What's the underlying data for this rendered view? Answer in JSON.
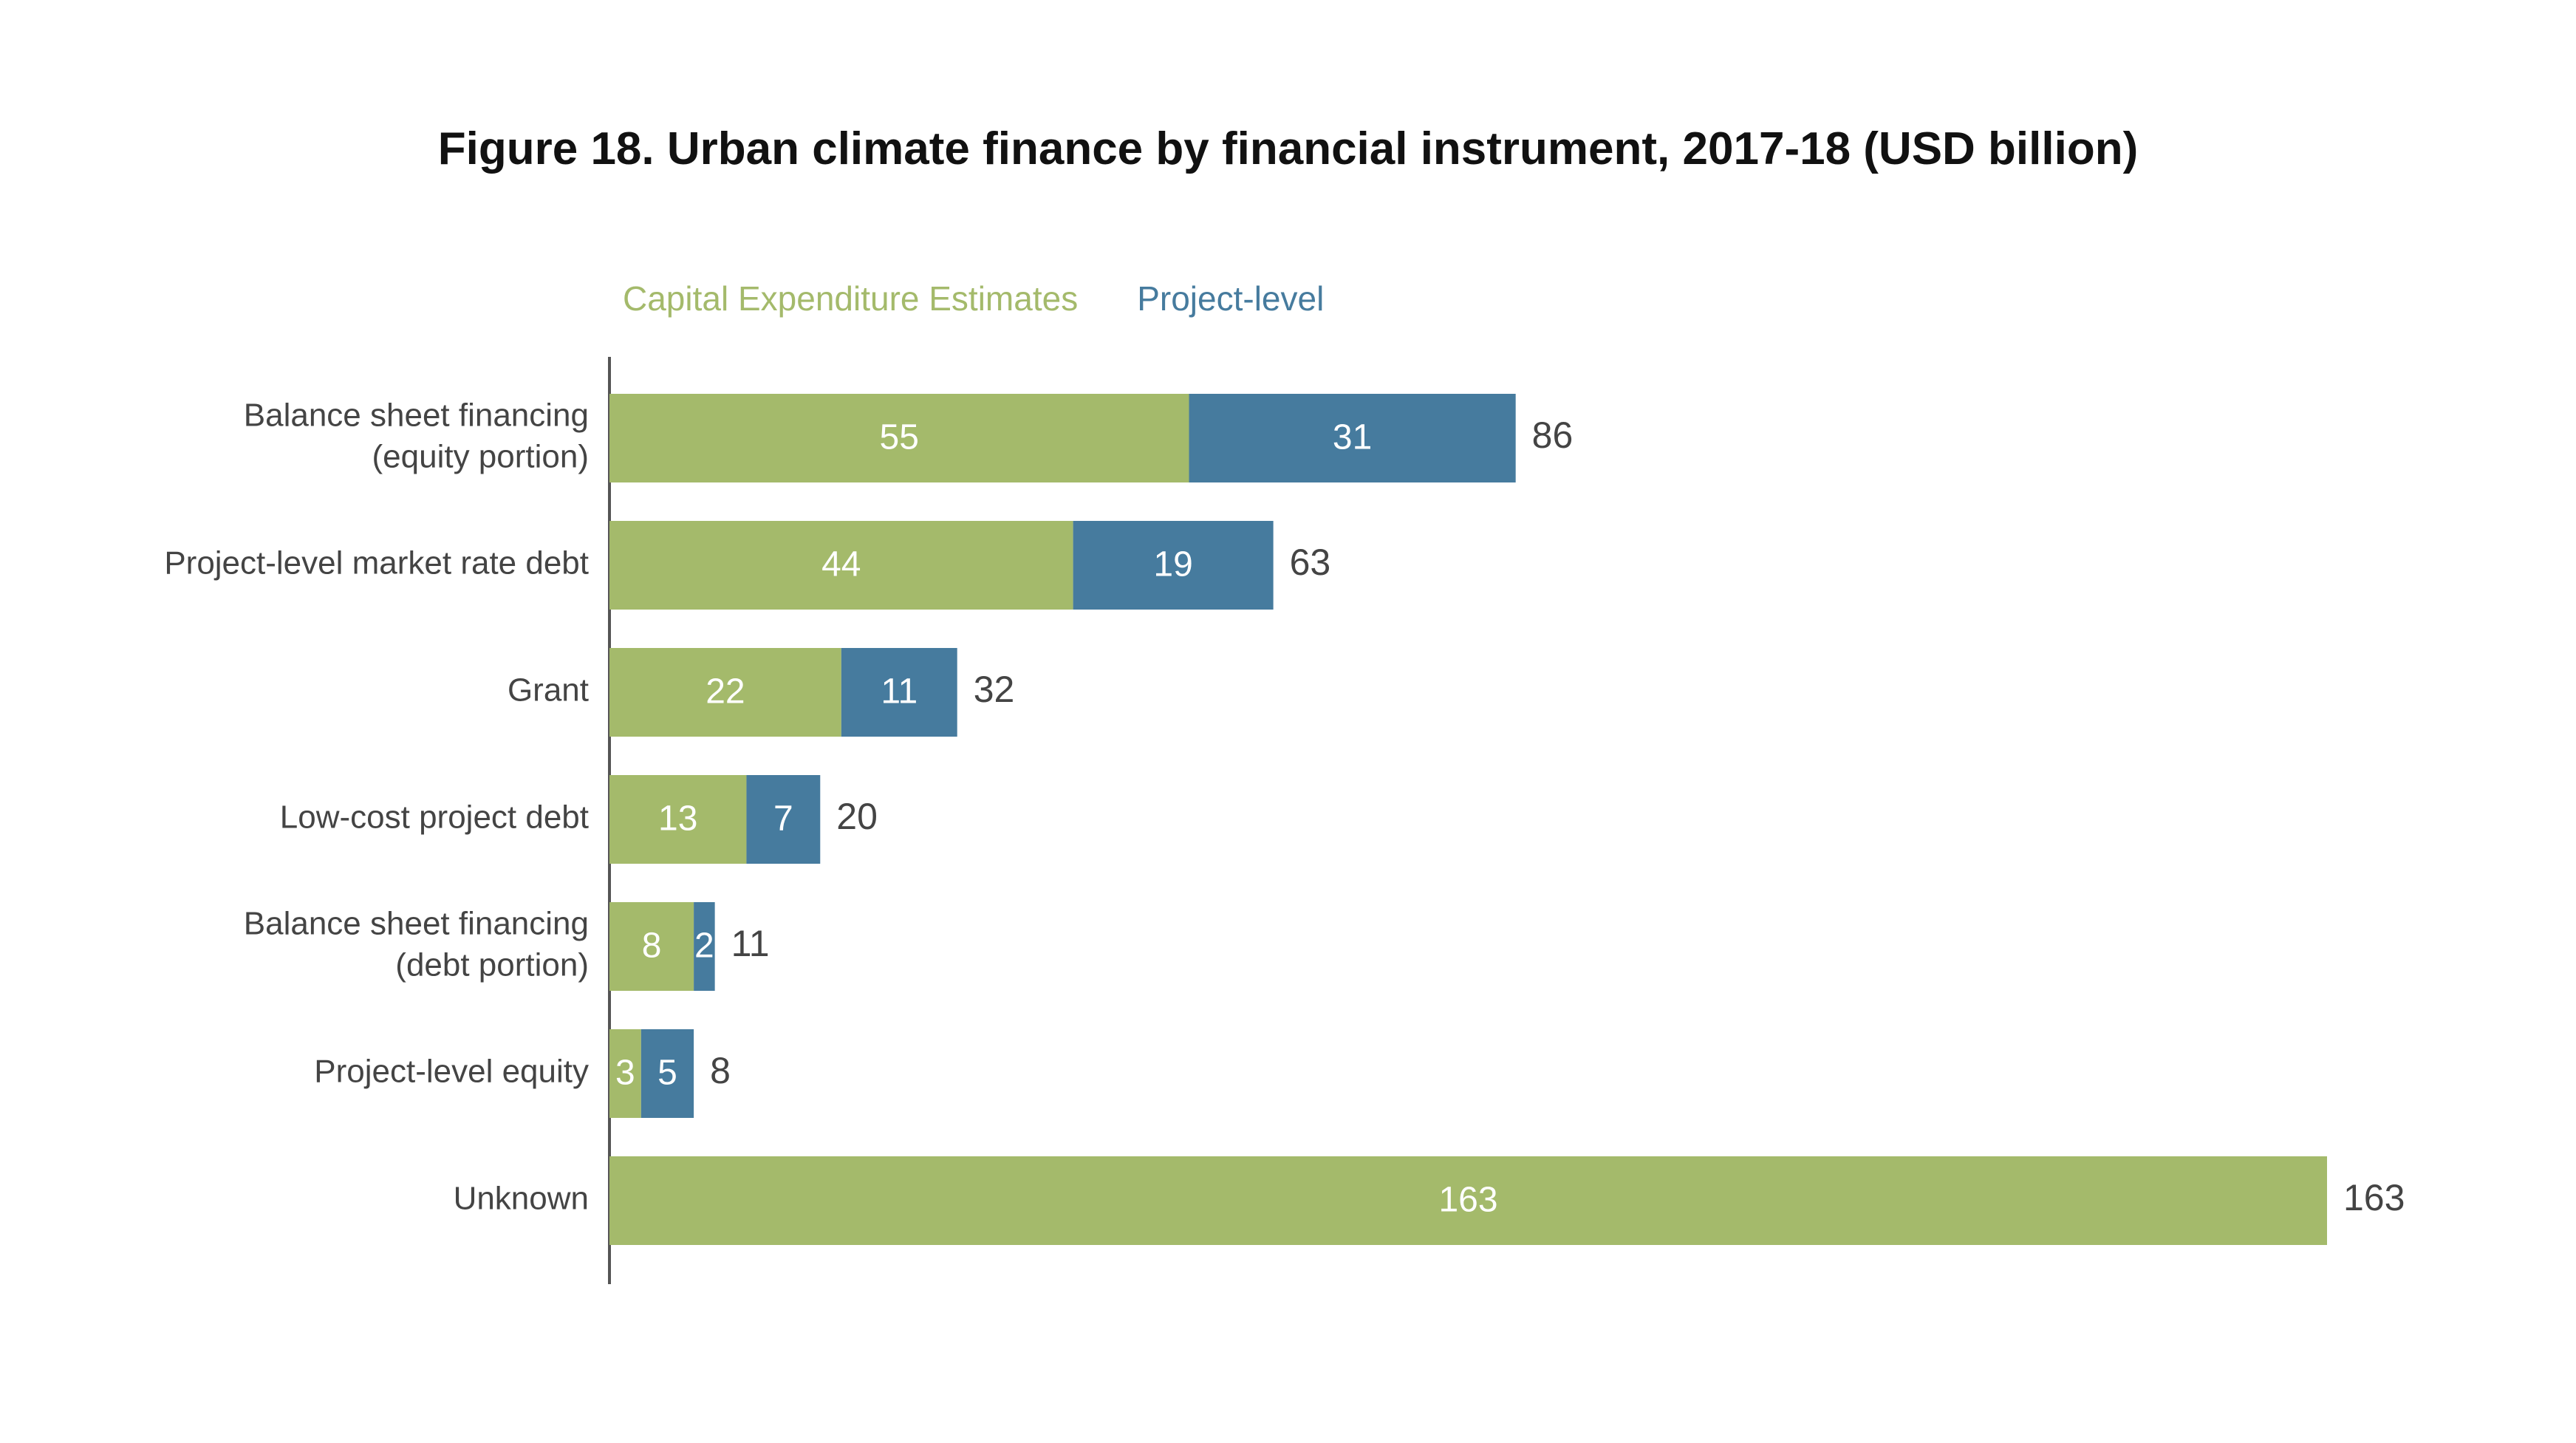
{
  "chart_data": {
    "type": "bar",
    "orientation": "horizontal",
    "stacked": true,
    "title": "Figure 18. Urban climate finance by financial instrument, 2017-18 (USD billion)",
    "categories": [
      "Balance sheet financing (equity portion)",
      "Project-level market rate debt",
      "Grant",
      "Low-cost project debt",
      "Balance sheet financing (debt portion)",
      "Project-level equity",
      "Unknown"
    ],
    "category_lines": [
      [
        "Balance sheet financing",
        "(equity portion)"
      ],
      [
        "Project-level market rate debt"
      ],
      [
        "Grant"
      ],
      [
        "Low-cost project debt"
      ],
      [
        "Balance sheet financing",
        "(debt portion)"
      ],
      [
        "Project-level equity"
      ],
      [
        "Unknown"
      ]
    ],
    "series": [
      {
        "name": "Capital Expenditure Estimates",
        "color": "#a4ba6b",
        "values": [
          55,
          44,
          22,
          13,
          8,
          3,
          163
        ]
      },
      {
        "name": "Project-level",
        "color": "#467b9e",
        "values": [
          31,
          19,
          11,
          7,
          2,
          5,
          0
        ]
      }
    ],
    "totals": [
      86,
      63,
      32,
      20,
      11,
      8,
      163
    ],
    "xlim": [
      0,
      163
    ],
    "legend_position": "top",
    "grid": false
  }
}
